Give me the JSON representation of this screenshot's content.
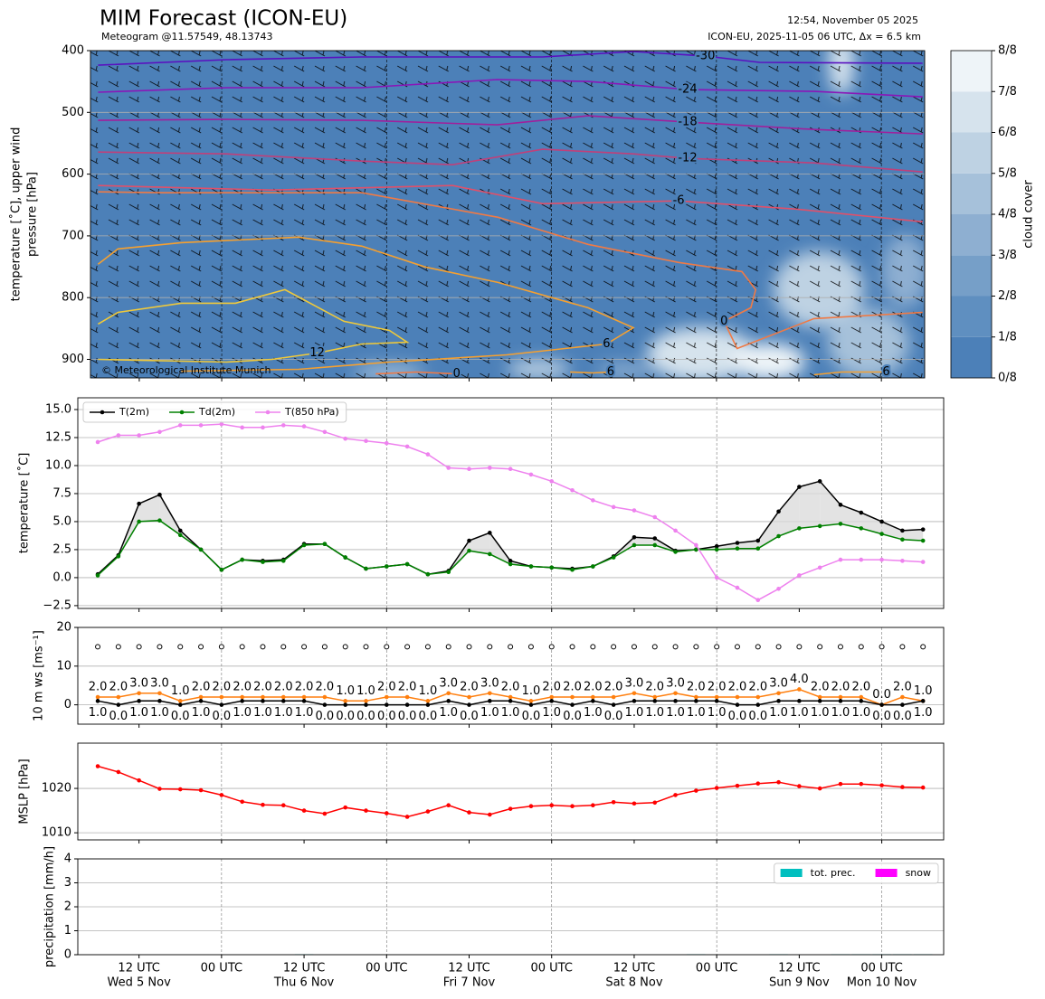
{
  "header": {
    "title": "MIM Forecast (ICON-EU)",
    "subtitle": "Meteogram @11.57549, 48.13743",
    "issued": "12:54, November 05 2025",
    "run": "ICON-EU, 2025-11-05 06 UTC, Δx = 6.5 km"
  },
  "chart_data": [
    {
      "type": "contour",
      "ylabel": [
        "temperature [˚C], upper wind",
        "pressure [hPa]"
      ],
      "copyright": "© Meteorological Institute Munich",
      "xlim": [
        4.9,
        126.3
      ],
      "ylim": [
        930,
        400
      ],
      "yticks": [
        400,
        500,
        600,
        700,
        800,
        900
      ],
      "grid": true,
      "colorbar": {
        "label": "cloud cover",
        "colors": [
          "#4c80b8",
          "#5f8fc0",
          "#769fc8",
          "#8eafd1",
          "#a6c1da",
          "#bed2e3",
          "#d6e3ed",
          "#eef4f8"
        ],
        "ticks": [
          {
            "value": 0,
            "label": "0/8"
          },
          {
            "value": 1,
            "label": "1/8"
          },
          {
            "value": 2,
            "label": "2/8"
          },
          {
            "value": 3,
            "label": "3/8"
          },
          {
            "value": 4,
            "label": "4/8"
          },
          {
            "value": 5,
            "label": "5/8"
          },
          {
            "value": 6,
            "label": "6/8"
          },
          {
            "value": 7,
            "label": "7/8"
          },
          {
            "value": 8,
            "label": "8/8"
          }
        ]
      },
      "contours": [
        {
          "level": -30,
          "color": "#5a10c0",
          "x": [
            6,
            24.7,
            44.4,
            70.7,
            83.9,
            94.4,
            102.3,
            126
          ],
          "p": [
            423.5,
            414.7,
            410.3,
            410.3,
            401.5,
            408.8,
            419.1,
            420.5
          ]
        },
        {
          "level": -24,
          "color": "#8a16b8",
          "x": [
            6,
            24.7,
            44.4,
            64.1,
            77.3,
            91.8,
            110.2,
            126
          ],
          "p": [
            467.4,
            460.1,
            460.1,
            446.9,
            449.9,
            463.0,
            466.0,
            474.8
          ]
        },
        {
          "level": -18,
          "color": "#a0209c",
          "x": [
            6,
            24.7,
            44.4,
            64.1,
            77.3,
            91.8,
            110.2,
            126
          ],
          "p": [
            512.9,
            511.4,
            512.9,
            520.2,
            505.6,
            515.8,
            527.6,
            534.9
          ]
        },
        {
          "level": -12,
          "color": "#c0407a",
          "x": [
            6,
            24.7,
            44.4,
            57.6,
            70.7,
            83.9,
            91.8,
            110.2,
            126
          ],
          "p": [
            564.2,
            567.2,
            578.9,
            584.8,
            559.8,
            567.2,
            574.5,
            581.8,
            596.5
          ]
        },
        {
          "level": -6,
          "color": "#e0506a",
          "x": [
            6,
            31.3,
            57.6,
            70.7,
            90.5,
            107.6,
            126
          ],
          "p": [
            618.5,
            625.8,
            618.5,
            647.8,
            643.4,
            656.6,
            677.1
          ]
        },
        {
          "level": 0,
          "color": "#f07a45",
          "x": [
            6,
            15.5,
            44.4,
            64.2,
            77.3,
            90.5,
            99.7,
            101.7,
            101.0,
            97.1,
            99.0,
            110.2,
            126
          ],
          "p": [
            628.7,
            630.2,
            630.2,
            669.8,
            713.8,
            743.1,
            757.8,
            787.1,
            816.4,
            838.4,
            882.4,
            834.0,
            823.8
          ]
        },
        {
          "level": 6,
          "color": "#f5a030",
          "x": [
            6,
            8.9,
            18.1,
            35.2,
            44.4,
            53.6,
            64.2,
            77.3,
            83.9,
            80.0,
            65.5,
            48.4,
            35.2,
            18.1
          ],
          "p": [
            746.0,
            721.1,
            710.9,
            702.1,
            716.7,
            750.4,
            775.4,
            816.4,
            848.7,
            875.1,
            892.7,
            904.4,
            916.1,
            919.1
          ]
        },
        {
          "level": 12,
          "color": "#f0c93a",
          "x": [
            6,
            8.9,
            18.1,
            26.0,
            33.2,
            41.8,
            48.4,
            51.0,
            44.4,
            37.9,
            31.3,
            24.7,
            6
          ],
          "p": [
            842.8,
            823.8,
            809.1,
            809.1,
            787.1,
            838.4,
            853.1,
            872.1,
            875.1,
            889.7,
            900.0,
            904.4,
            900.0
          ]
        },
        {
          "level": 0,
          "color": "#f07a45",
          "x": [
            46.4,
            52.3,
            58.2
          ],
          "p": [
            923.5,
            920.5,
            923.5
          ]
        },
        {
          "level": 6,
          "color": "#f5a030",
          "x": [
            74.7,
            78.0,
            80.6
          ],
          "p": [
            920.5,
            922.0,
            920.5
          ]
        },
        {
          "level": 6,
          "color": "#f5a030",
          "x": [
            110.2,
            114.2,
            120.7
          ],
          "p": [
            924.9,
            920.5,
            920.5
          ]
        }
      ]
    },
    {
      "type": "line",
      "ylabel": "temperature [˚C]",
      "xlim": [
        3.1,
        129
      ],
      "ylim": [
        -2.75,
        16.05
      ],
      "grid": true,
      "legend": "upper left",
      "fill_between": true,
      "yticks": [
        {
          "value": -2.5,
          "label": "−2.5"
        },
        {
          "value": 0,
          "label": "0.0"
        },
        {
          "value": 2.5,
          "label": "2.5"
        },
        {
          "value": 5,
          "label": "5.0"
        },
        {
          "value": 7.5,
          "label": "7.5"
        },
        {
          "value": 10,
          "label": "10.0"
        },
        {
          "value": 12.5,
          "label": "12.5"
        },
        {
          "value": 15,
          "label": "15.0"
        }
      ],
      "x": [
        6,
        9,
        12,
        15,
        18,
        21,
        24,
        27,
        30,
        33,
        36,
        39,
        42,
        45,
        48,
        51,
        54,
        57,
        60,
        63,
        66,
        69,
        72,
        75,
        78,
        81,
        84,
        87,
        90,
        93,
        96,
        99,
        102,
        105,
        108,
        111,
        114,
        117,
        120,
        123,
        126
      ],
      "series": [
        {
          "name": "T(2m)",
          "color": "#000000",
          "values": [
            0.3,
            2.0,
            6.6,
            7.4,
            4.2,
            2.5,
            0.7,
            1.6,
            1.5,
            1.6,
            3.0,
            3.0,
            1.8,
            0.8,
            1.0,
            1.2,
            0.3,
            0.6,
            3.3,
            4.0,
            1.5,
            1.0,
            0.9,
            0.8,
            1.0,
            1.9,
            3.6,
            3.5,
            2.4,
            2.5,
            2.8,
            3.1,
            3.3,
            5.9,
            8.1,
            8.6,
            6.5,
            5.8,
            5.0,
            4.2,
            4.3
          ]
        },
        {
          "name": "Td(2m)",
          "color": "#008000",
          "values": [
            0.2,
            1.9,
            5.0,
            5.1,
            3.8,
            2.5,
            0.7,
            1.6,
            1.4,
            1.5,
            2.9,
            3.0,
            1.8,
            0.8,
            1.0,
            1.2,
            0.3,
            0.5,
            2.4,
            2.1,
            1.2,
            1.0,
            0.9,
            0.7,
            1.0,
            1.8,
            2.9,
            2.9,
            2.3,
            2.5,
            2.5,
            2.6,
            2.6,
            3.7,
            4.4,
            4.6,
            4.8,
            4.4,
            3.9,
            3.4,
            3.3
          ]
        },
        {
          "name": "T(850 hPa)",
          "color": "#ee82ee",
          "values": [
            12.1,
            12.7,
            12.7,
            13.0,
            13.6,
            13.6,
            13.7,
            13.4,
            13.4,
            13.6,
            13.5,
            13.0,
            12.4,
            12.2,
            12.0,
            11.7,
            11.0,
            9.8,
            9.7,
            9.8,
            9.7,
            9.2,
            8.6,
            7.8,
            6.9,
            6.3,
            6.0,
            5.4,
            4.2,
            2.9,
            0.0,
            -0.9,
            -2.0,
            -1.0,
            0.2,
            0.9,
            1.6,
            1.6,
            1.6,
            1.5,
            1.4
          ]
        }
      ]
    },
    {
      "type": "line",
      "ylabel": "10 m ws [ms⁻¹]",
      "xlim": [
        3.1,
        129
      ],
      "ylim": [
        -5,
        20
      ],
      "yticks": [
        0,
        10,
        20
      ],
      "grid": true,
      "barb_level": 15,
      "x": [
        6,
        9,
        12,
        15,
        18,
        21,
        24,
        27,
        30,
        33,
        36,
        39,
        42,
        45,
        48,
        51,
        54,
        57,
        60,
        63,
        66,
        69,
        72,
        75,
        78,
        81,
        84,
        87,
        90,
        93,
        96,
        99,
        102,
        105,
        108,
        111,
        114,
        117,
        120,
        123,
        126
      ],
      "series": [
        {
          "color": "#ff7f0e",
          "label_position": "above",
          "values": [
            2,
            2,
            3,
            3,
            1,
            2,
            2,
            2,
            2,
            2,
            2,
            2,
            1,
            1,
            2,
            2,
            1,
            3,
            2,
            3,
            2,
            1,
            2,
            2,
            2,
            2,
            3,
            2,
            3,
            2,
            2,
            2,
            2,
            3,
            4,
            2,
            2,
            2,
            0,
            2,
            1
          ],
          "value_labels": [
            "2.0",
            "2.0",
            "3.0",
            "3.0",
            "1.0",
            "2.0",
            "2.0",
            "2.0",
            "2.0",
            "2.0",
            "2.0",
            "2.0",
            "1.0",
            "1.0",
            "2.0",
            "2.0",
            "1.0",
            "3.0",
            "2.0",
            "3.0",
            "2.0",
            "1.0",
            "2.0",
            "2.0",
            "2.0",
            "2.0",
            "3.0",
            "2.0",
            "3.0",
            "2.0",
            "2.0",
            "2.0",
            "2.0",
            "3.0",
            "4.0",
            "2.0",
            "2.0",
            "2.0",
            "0.0",
            "2.0",
            "1.0"
          ]
        },
        {
          "color": "#000000",
          "label_position": "below",
          "values": [
            1,
            0,
            1,
            1,
            0,
            1,
            0,
            1,
            1,
            1,
            1,
            0,
            0,
            0,
            0,
            0,
            0,
            1,
            0,
            1,
            1,
            0,
            1,
            0,
            1,
            0,
            1,
            1,
            1,
            1,
            1,
            0,
            0,
            1,
            1,
            1,
            1,
            1,
            0,
            0,
            1
          ],
          "value_labels": [
            "1.0",
            "0.0",
            "1.0",
            "1.0",
            "0.0",
            "1.0",
            "0.0",
            "1.0",
            "1.0",
            "1.0",
            "1.0",
            "0.0",
            "0.0",
            "0.0",
            "0.0",
            "0.0",
            "0.0",
            "1.0",
            "0.0",
            "1.0",
            "1.0",
            "0.0",
            "1.0",
            "0.0",
            "1.0",
            "0.0",
            "1.0",
            "1.0",
            "1.0",
            "1.0",
            "1.0",
            "0.0",
            "0.0",
            "1.0",
            "1.0",
            "1.0",
            "1.0",
            "1.0",
            "0.0",
            "0.0",
            "1.0"
          ]
        }
      ]
    },
    {
      "type": "line",
      "ylabel": "MSLP [hPa]",
      "xlim": [
        3.1,
        129
      ],
      "ylim": [
        1008.4,
        1030.2
      ],
      "yticks": [
        1010,
        1020
      ],
      "grid": true,
      "x": [
        6,
        9,
        12,
        15,
        18,
        21,
        24,
        27,
        30,
        33,
        36,
        39,
        42,
        45,
        48,
        51,
        54,
        57,
        60,
        63,
        66,
        69,
        72,
        75,
        78,
        81,
        84,
        87,
        90,
        93,
        96,
        99,
        102,
        105,
        108,
        111,
        114,
        117,
        120,
        123,
        126
      ],
      "series": [
        {
          "color": "#ff0000",
          "values": [
            1025.0,
            1023.7,
            1021.8,
            1019.9,
            1019.8,
            1019.6,
            1018.5,
            1017.0,
            1016.3,
            1016.2,
            1015.0,
            1014.3,
            1015.7,
            1015.0,
            1014.4,
            1013.6,
            1014.8,
            1016.2,
            1014.6,
            1014.1,
            1015.4,
            1016.0,
            1016.2,
            1016.0,
            1016.2,
            1016.9,
            1016.6,
            1016.8,
            1018.5,
            1019.5,
            1020.1,
            1020.6,
            1021.1,
            1021.4,
            1020.5,
            1020.0,
            1021.0,
            1021.0,
            1020.7,
            1020.3,
            1020.2
          ]
        }
      ]
    },
    {
      "type": "bar",
      "ylabel": "precipitation [mm/h]",
      "xlim": [
        3.1,
        129
      ],
      "ylim": [
        0,
        4
      ],
      "yticks": [
        0,
        1,
        2,
        3,
        4
      ],
      "grid": true,
      "legend": "upper right",
      "x": [
        6,
        9,
        12,
        15,
        18,
        21,
        24,
        27,
        30,
        33,
        36,
        39,
        42,
        45,
        48,
        51,
        54,
        57,
        60,
        63,
        66,
        69,
        72,
        75,
        78,
        81,
        84,
        87,
        90,
        93,
        96,
        99,
        102,
        105,
        108,
        111,
        114,
        117,
        120,
        123,
        126
      ],
      "xticks": [
        {
          "value": 12,
          "label": [
            "12 UTC",
            "Wed 5 Nov"
          ]
        },
        {
          "value": 24,
          "label": [
            "00 UTC"
          ]
        },
        {
          "value": 36,
          "label": [
            "12 UTC",
            "Thu 6 Nov"
          ]
        },
        {
          "value": 48,
          "label": [
            "00 UTC"
          ]
        },
        {
          "value": 60,
          "label": [
            "12 UTC",
            "Fri 7 Nov"
          ]
        },
        {
          "value": 72,
          "label": [
            "00 UTC"
          ]
        },
        {
          "value": 84,
          "label": [
            "12 UTC",
            "Sat 8 Nov"
          ]
        },
        {
          "value": 96,
          "label": [
            "00 UTC"
          ]
        },
        {
          "value": 108,
          "label": [
            "12 UTC",
            "Sun 9 Nov"
          ]
        },
        {
          "value": 120,
          "label": [
            "00 UTC",
            "Mon 10 Nov"
          ]
        }
      ],
      "series": [
        {
          "name": "tot. prec.",
          "color": "#00bfbf",
          "values": [
            0,
            0,
            0,
            0,
            0,
            0,
            0,
            0,
            0,
            0,
            0.02,
            0,
            0,
            0,
            0,
            0,
            0,
            0,
            0,
            0,
            0,
            0,
            0,
            0,
            0,
            0,
            0,
            0,
            0,
            0.02,
            0,
            0,
            0,
            0.02,
            0,
            0,
            0.02,
            0.02,
            0.02,
            0.02,
            0.02
          ]
        },
        {
          "name": "snow",
          "color": "#ff00ff",
          "values": [
            0,
            0,
            0,
            0,
            0,
            0,
            0,
            0,
            0,
            0,
            0,
            0,
            0,
            0,
            0,
            0,
            0,
            0,
            0,
            0,
            0,
            0,
            0,
            0,
            0,
            0,
            0,
            0,
            0,
            0,
            0,
            0,
            0,
            0,
            0,
            0,
            0,
            0,
            0,
            0,
            0
          ]
        }
      ]
    }
  ]
}
